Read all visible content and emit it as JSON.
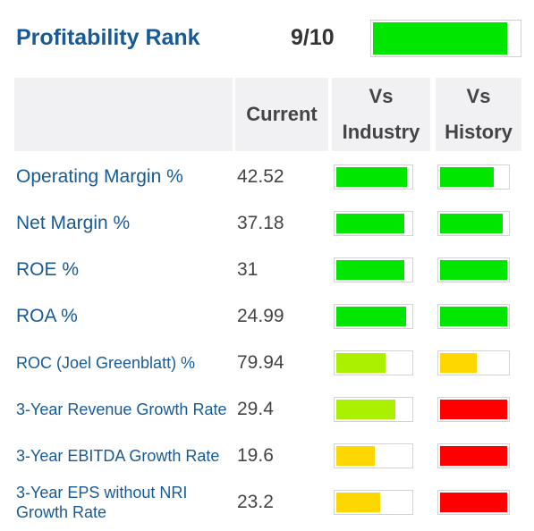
{
  "header": {
    "title": "Profitability Rank",
    "rank": "9/10",
    "rank_fraction": 0.92,
    "rank_color": "#00e600"
  },
  "columns": {
    "current": "Current",
    "vs_industry_line1": "Vs",
    "vs_industry_line2": "Industry",
    "vs_history_line1": "Vs",
    "vs_history_line2": "History"
  },
  "rows": [
    {
      "metric": "Operating Margin %",
      "value": "42.52",
      "industry": 0.95,
      "industry_color": "#00e600",
      "history": 0.8,
      "history_color": "#00e600"
    },
    {
      "metric": "Net Margin %",
      "value": "37.18",
      "industry": 0.92,
      "industry_color": "#00e600",
      "history": 0.93,
      "history_color": "#00e600"
    },
    {
      "metric": "ROE %",
      "value": "31",
      "industry": 0.92,
      "industry_color": "#00e600",
      "history": 1.0,
      "history_color": "#00e600"
    },
    {
      "metric": "ROA %",
      "value": "24.99",
      "industry": 0.94,
      "industry_color": "#00e600",
      "history": 1.0,
      "history_color": "#00e600"
    },
    {
      "metric": "ROC (Joel Greenblatt) %",
      "value": "79.94",
      "industry": 0.66,
      "industry_color": "#aaf000",
      "history": 0.55,
      "history_color": "#ffd700"
    },
    {
      "metric": "3-Year Revenue Growth Rate",
      "value": "29.4",
      "industry": 0.8,
      "industry_color": "#aaf000",
      "history": 1.0,
      "history_color": "#ff0000"
    },
    {
      "metric": "3-Year EBITDA Growth Rate",
      "value": "19.6",
      "industry": 0.52,
      "industry_color": "#ffd700",
      "history": 1.0,
      "history_color": "#ff0000"
    },
    {
      "metric": "3-Year EPS without NRI Growth Rate",
      "value": "23.2",
      "industry": 0.59,
      "industry_color": "#ffd700",
      "history": 1.0,
      "history_color": "#ff0000"
    }
  ]
}
